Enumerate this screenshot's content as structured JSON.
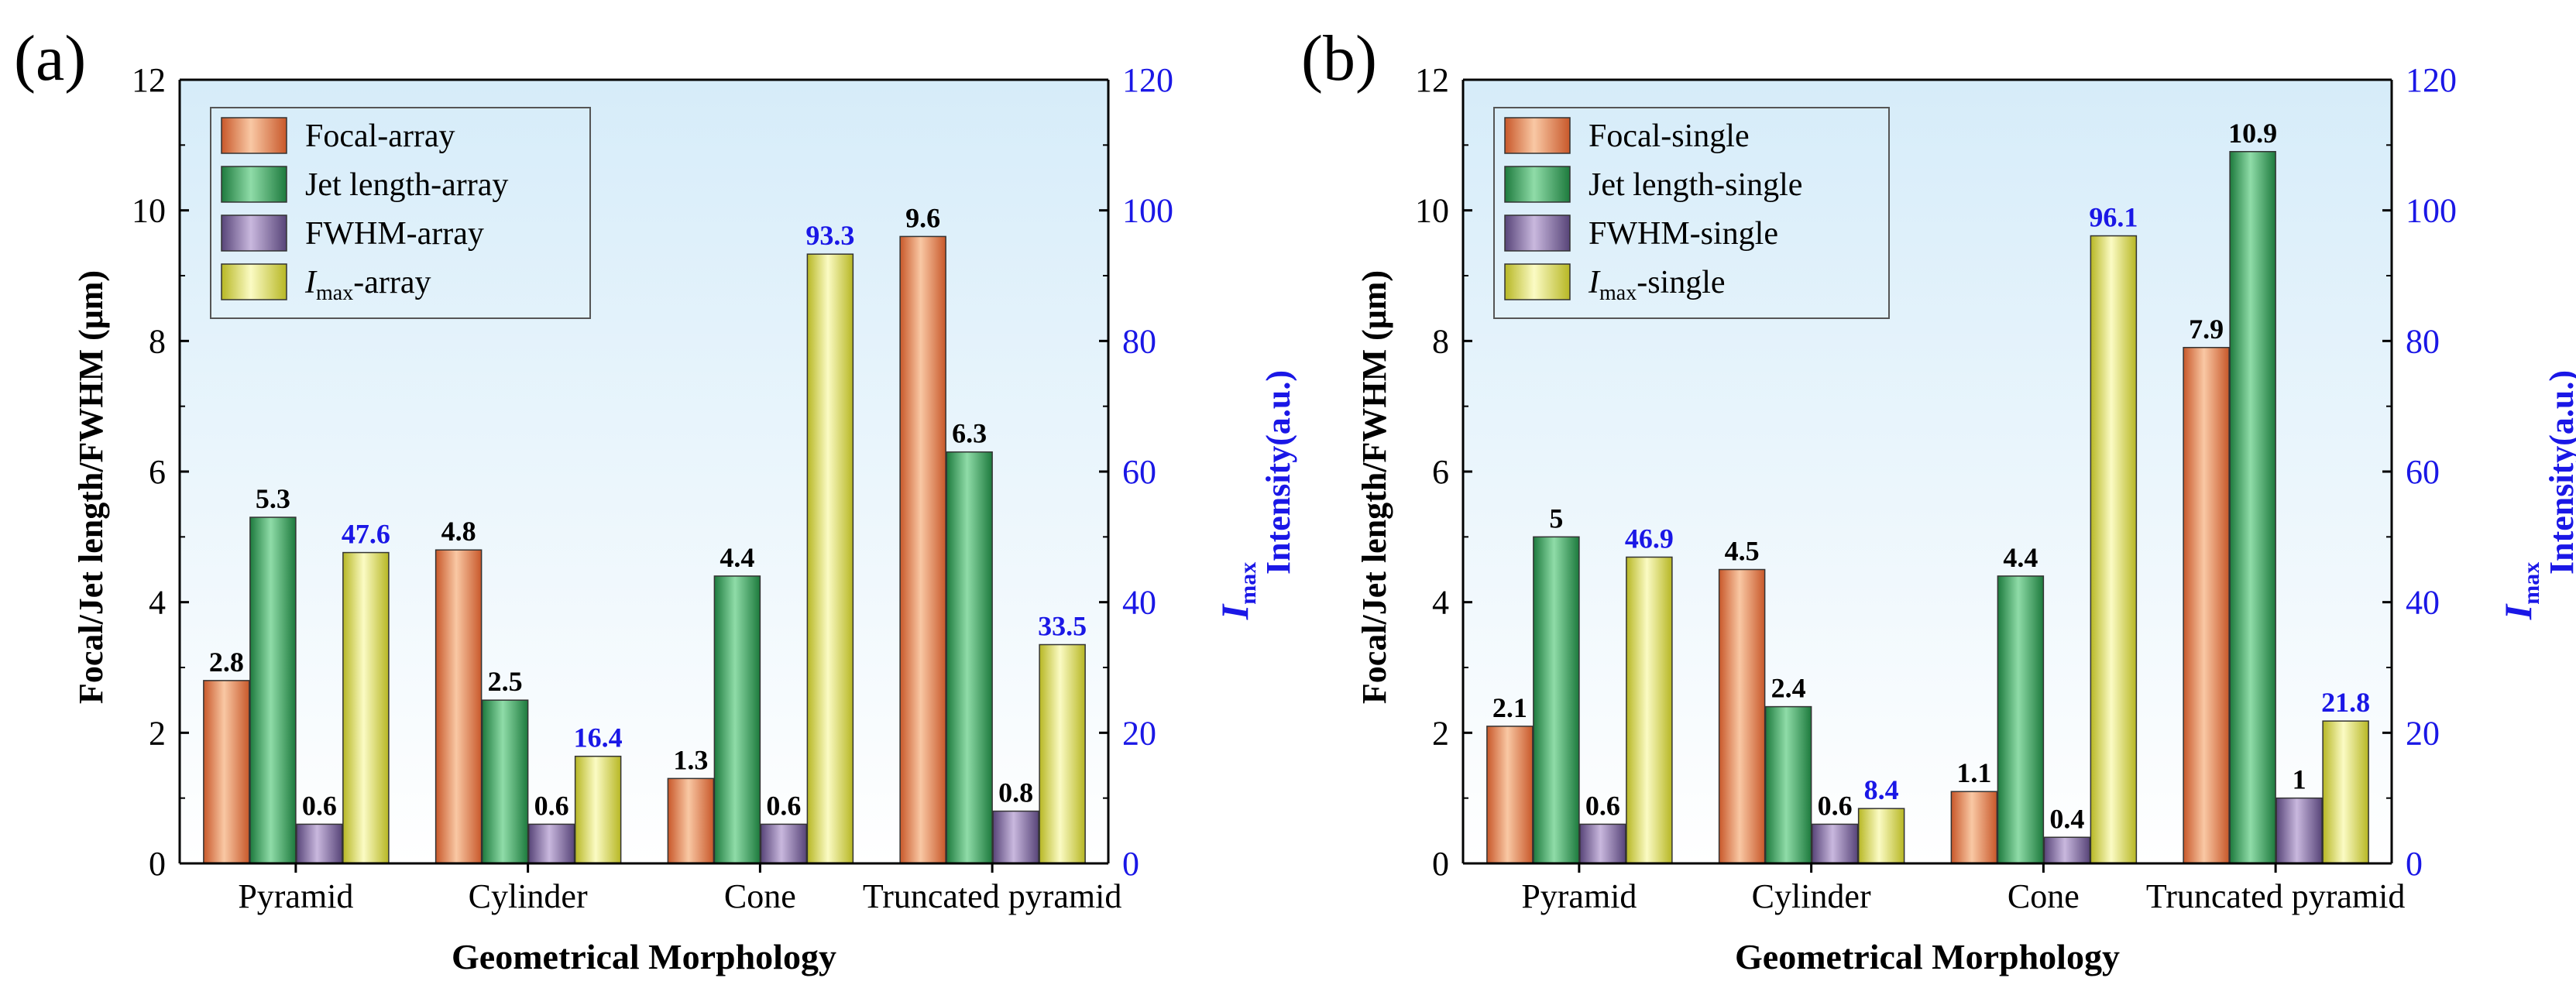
{
  "chart_data": [
    {
      "type": "bar",
      "panel_label": "(a)",
      "categories": [
        "Pyramid",
        "Cylinder",
        "Cone",
        "Truncated pyramid"
      ],
      "xlabel": "Geometrical Morphology",
      "ylabel": "Focal/Jet length/FWHM (μm)",
      "ylim": [
        0,
        12
      ],
      "yticks": [
        "0",
        "2",
        "4",
        "6",
        "8",
        "10",
        "12"
      ],
      "y2label": {
        "main": "I",
        "sub": "max",
        "rest": "Intensity(a.u.)"
      },
      "y2lim": [
        0,
        120
      ],
      "y2ticks": [
        "0",
        "20",
        "40",
        "60",
        "80",
        "100",
        "120"
      ],
      "legend_position": "top-left",
      "series": [
        {
          "name": "Focal-array",
          "axis": "left",
          "color": "orange",
          "values": [
            2.8,
            4.8,
            1.3,
            9.6
          ],
          "labels": [
            "2.8",
            "4.8",
            "1.3",
            "9.6"
          ]
        },
        {
          "name": "Jet length-array",
          "axis": "left",
          "color": "green",
          "values": [
            5.3,
            2.5,
            4.4,
            6.3
          ],
          "labels": [
            "5.3",
            "2.5",
            "4.4",
            "6.3"
          ]
        },
        {
          "name": "FWHM-array",
          "axis": "left",
          "color": "purple",
          "values": [
            0.6,
            0.6,
            0.6,
            0.8
          ],
          "labels": [
            "0.6",
            "0.6",
            "0.6",
            "0.8"
          ]
        },
        {
          "name": "-array",
          "name_italic": "I",
          "name_sub": "max",
          "axis": "right",
          "color": "yellow",
          "values": [
            47.6,
            16.4,
            93.3,
            33.5
          ],
          "labels": [
            "47.6",
            "16.4",
            "93.3",
            "33.5"
          ]
        }
      ]
    },
    {
      "type": "bar",
      "panel_label": "(b)",
      "categories": [
        "Pyramid",
        "Cylinder",
        "Cone",
        "Truncated pyramid"
      ],
      "xlabel": "Geometrical Morphology",
      "ylabel": "Focal/Jet length/FWHM (μm)",
      "ylim": [
        0,
        12
      ],
      "yticks": [
        "0",
        "2",
        "4",
        "6",
        "8",
        "10",
        "12"
      ],
      "y2label": {
        "main": "I",
        "sub": "max",
        "rest": "Intensity(a.u.)"
      },
      "y2lim": [
        0,
        120
      ],
      "y2ticks": [
        "0",
        "20",
        "40",
        "60",
        "80",
        "100",
        "120"
      ],
      "legend_position": "top-left",
      "series": [
        {
          "name": "Focal-single",
          "axis": "left",
          "color": "orange",
          "values": [
            2.1,
            4.5,
            1.1,
            7.9
          ],
          "labels": [
            "2.1",
            "4.5",
            "1.1",
            "7.9"
          ]
        },
        {
          "name": "Jet length-single",
          "axis": "left",
          "color": "green",
          "values": [
            5,
            2.4,
            4.4,
            10.9
          ],
          "labels": [
            "5",
            "2.4",
            "4.4",
            "10.9"
          ]
        },
        {
          "name": "FWHM-single",
          "axis": "left",
          "color": "purple",
          "values": [
            0.6,
            0.6,
            0.4,
            1
          ],
          "labels": [
            "0.6",
            "0.6",
            "0.4",
            "1"
          ]
        },
        {
          "name": "-single",
          "name_italic": "I",
          "name_sub": "max",
          "axis": "right",
          "color": "yellow",
          "values": [
            46.9,
            8.4,
            96.1,
            21.8
          ],
          "labels": [
            "46.9",
            "8.4",
            "96.1",
            "21.8"
          ]
        }
      ]
    }
  ],
  "colors": {
    "left_text": "#000000",
    "right_text": "#1a17e6",
    "orange": [
      "#f9c8a4",
      "#e07a46",
      "#c8582a"
    ],
    "green": [
      "#8fdca8",
      "#2e9b55",
      "#1d7a3d"
    ],
    "purple": [
      "#c9b8de",
      "#7a64a3",
      "#574478"
    ],
    "yellow": [
      "#fbfbc4",
      "#e2e24c",
      "#b7b724"
    ],
    "bg_top": "#d6ecf9",
    "bg_bottom": "#ffffff"
  }
}
